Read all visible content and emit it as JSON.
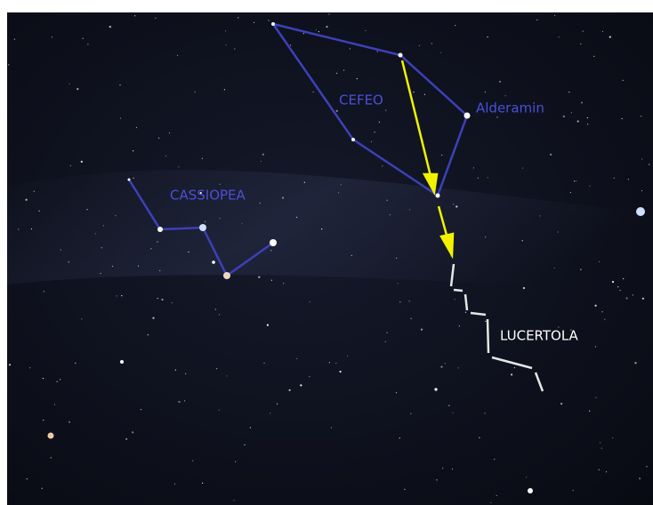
{
  "labels": {
    "cepheus": "CEFEO",
    "star": "Alderamin",
    "cassiopeia": "CASSIOPEA",
    "lacerta": "LUCERTOLA"
  }
}
